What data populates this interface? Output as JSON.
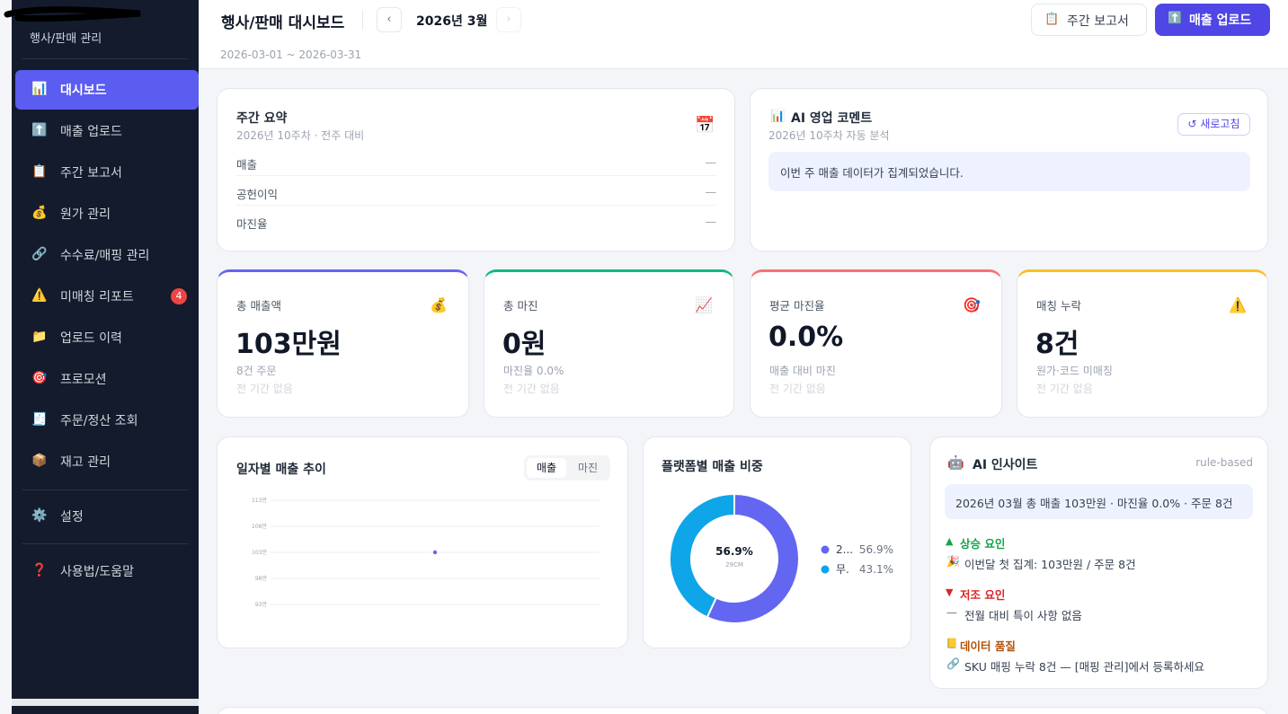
{
  "sidebar": {
    "subtitle": "행사/판매 관리",
    "nav": [
      {
        "icon": "📊",
        "label": "대시보드"
      },
      {
        "icon": "⬆️",
        "label": "매출 업로드"
      },
      {
        "icon": "📋",
        "label": "주간 보고서"
      },
      {
        "icon": "💰",
        "label": "원가 관리"
      },
      {
        "icon": "🔗",
        "label": "수수료/매핑 관리"
      },
      {
        "icon": "⚠️",
        "label": "미매칭 리포트",
        "badge": 4
      },
      {
        "icon": "📁",
        "label": "업로드 이력"
      },
      {
        "icon": "🎯",
        "label": "프로모션"
      },
      {
        "icon": "🧾",
        "label": "주문/정산 조회"
      },
      {
        "icon": "📦",
        "label": "재고 관리"
      }
    ],
    "settings": [
      {
        "icon": "⚙️",
        "label": "설정"
      },
      {
        "icon": "❓",
        "label": "사용법/도움말"
      }
    ]
  },
  "header": {
    "title": "행사/판매 대시보드",
    "prev": "‹",
    "next": "›",
    "month": "2026년 3월",
    "range": "2026-03-01 ~ 2026-03-31",
    "report_button": {
      "icon": "📋",
      "label": "주간 보고서"
    },
    "upload_button": {
      "icon": "⬆️",
      "label": "매출 업로드"
    }
  },
  "summary": {
    "title": "주간 요약",
    "subtitle": "2026년 10주차 · 전주 대비",
    "icon": "📅",
    "rows": [
      {
        "label": "매출",
        "value": "—"
      },
      {
        "label": "공헌이익",
        "value": "—"
      },
      {
        "label": "마진율",
        "value": "—"
      }
    ]
  },
  "comment": {
    "icon": "📊",
    "title": "AI 영업 코멘트",
    "subtitle": "2026년 10주차 자동 분석",
    "refresh": "↺ 새로고침",
    "message": "이번 주 매출 데이터가 집계되었습니다."
  },
  "kpis": [
    {
      "label": "총 매출액",
      "icon": "💰",
      "value": "103만원",
      "sub": "8건 주문",
      "note": "전 기간 없음",
      "color": "#6366f1"
    },
    {
      "label": "총 마진",
      "icon": "📈",
      "value": "0원",
      "sub": "마진율 0.0%",
      "note": "전 기간 없음",
      "color": "#10b981"
    },
    {
      "label": "평균 마진율",
      "icon": "🎯",
      "value": "0.0%",
      "sub": "매출 대비 마진",
      "note": "전 기간 없음",
      "color": "#f87171"
    },
    {
      "label": "매칭 누락",
      "icon": "⚠️",
      "value": "8건",
      "sub": "원가·코드 미매칭",
      "note": "전 기간 없음",
      "color": "#fbbf24"
    }
  ],
  "trend": {
    "type": "line",
    "title": "일자별 매출 추이",
    "tabs": [
      "매출",
      "마진"
    ],
    "categories": [
      null
    ],
    "values": [
      1030000
    ],
    "color": "#6366f1",
    "ylim": [
      930000,
      1130000
    ],
    "yticks": [
      {
        "value": 1130000,
        "label": "113만"
      },
      {
        "value": 1080000,
        "label": "108만"
      },
      {
        "value": 1030000,
        "label": "103만"
      },
      {
        "value": 980000,
        "label": "98만"
      },
      {
        "value": 930000,
        "label": "93만"
      }
    ],
    "grid": true
  },
  "share": {
    "type": "pie",
    "title": "플랫폼별 매출 비중",
    "categories": [
      "2...",
      "무."
    ],
    "values": [
      56.9,
      43.1
    ],
    "value_labels": [
      "56.9%",
      "43.1%"
    ],
    "colors": [
      "#6366f1",
      "#0ea5e9"
    ],
    "center_label": "29CM"
  },
  "insight": {
    "icon": "🤖",
    "title": "AI 인사이트",
    "tag": "rule-based",
    "summary": "2026년 03월 총 매출 103만원 · 마진율 0.0% · 주문 8건",
    "sections": [
      {
        "marker": "▲",
        "heading": "상승 요인",
        "color": "#16a34a",
        "items": [
          {
            "icon": "🎉",
            "text": "이번달 첫 집계: 103만원 / 주문 8건"
          }
        ]
      },
      {
        "marker": "▼",
        "heading": "저조 요인",
        "color": "#dc2626",
        "items": [
          {
            "icon": "—",
            "text": "전월 대비 특이 사항 없음"
          }
        ]
      },
      {
        "marker": "📒",
        "heading": "데이터 품질",
        "color": "#b45309",
        "items": [
          {
            "icon": "🔗",
            "text": "SKU 매핑 누락 8건 — [매핑 관리]에서 등록하세요"
          }
        ]
      }
    ]
  }
}
